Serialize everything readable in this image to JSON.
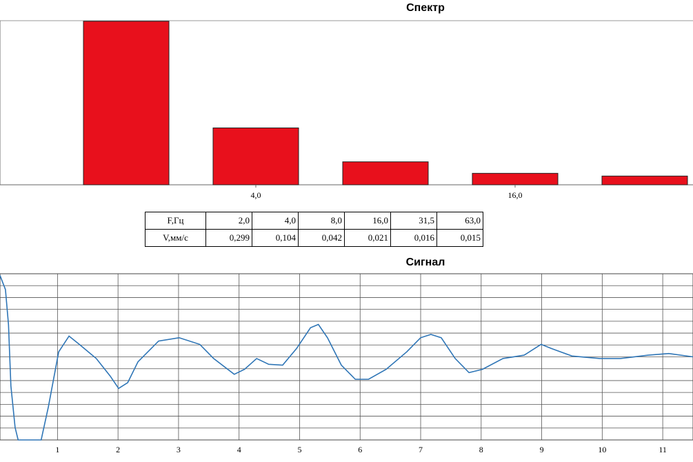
{
  "chart_data": [
    {
      "type": "bar",
      "title": "Спектр",
      "categories": [
        null,
        "4,0",
        null,
        "16,0",
        null
      ],
      "values": [
        0.299,
        0.104,
        0.042,
        0.021,
        0.016
      ],
      "color": "#e8101c",
      "ylim": [
        0,
        0.3
      ]
    },
    {
      "type": "line",
      "title": "Сигнал",
      "x": [
        0.05,
        0.14,
        0.19,
        0.23,
        0.3,
        0.35,
        0.73,
        0.85,
        1.02,
        1.19,
        1.36,
        1.64,
        1.87,
        2.01,
        2.16,
        2.33,
        2.67,
        3.01,
        3.35,
        3.58,
        3.92,
        4.09,
        4.29,
        4.49,
        4.72,
        4.95,
        5.18,
        5.31,
        5.46,
        5.69,
        5.92,
        6.14,
        6.43,
        6.77,
        7.0,
        7.17,
        7.34,
        7.57,
        7.8,
        8.02,
        8.36,
        8.71,
        8.99,
        9.16,
        9.5,
        9.96,
        10.3,
        10.76,
        11.1,
        11.5
      ],
      "values": [
        0.98,
        0.81,
        0.39,
        -0.35,
        -0.85,
        -1.0,
        -1.0,
        -0.6,
        0.06,
        0.25,
        0.15,
        -0.02,
        -0.23,
        -0.38,
        -0.31,
        -0.06,
        0.19,
        0.23,
        0.15,
        -0.02,
        -0.21,
        -0.15,
        -0.02,
        -0.09,
        -0.1,
        0.1,
        0.35,
        0.39,
        0.23,
        -0.1,
        -0.27,
        -0.27,
        -0.15,
        0.06,
        0.23,
        0.27,
        0.23,
        -0.02,
        -0.19,
        -0.15,
        -0.02,
        0.02,
        0.15,
        0.1,
        0.01,
        -0.02,
        -0.02,
        0.02,
        0.04,
        0.0
      ],
      "color": "#2e75b6",
      "xlim": [
        0.05,
        11.5
      ],
      "ylim": [
        -1,
        1
      ],
      "xticks": [
        1,
        2,
        3,
        4,
        5,
        6,
        7,
        8,
        9,
        10,
        11
      ],
      "grid": true
    }
  ],
  "table": {
    "rows": [
      [
        "F,Гц",
        "2,0",
        "4,0",
        "8,0",
        "16,0",
        "31,5",
        "63,0"
      ],
      [
        "V,мм/с",
        "0,299",
        "0,104",
        "0,042",
        "0,021",
        "0,016",
        "0,015"
      ]
    ]
  }
}
